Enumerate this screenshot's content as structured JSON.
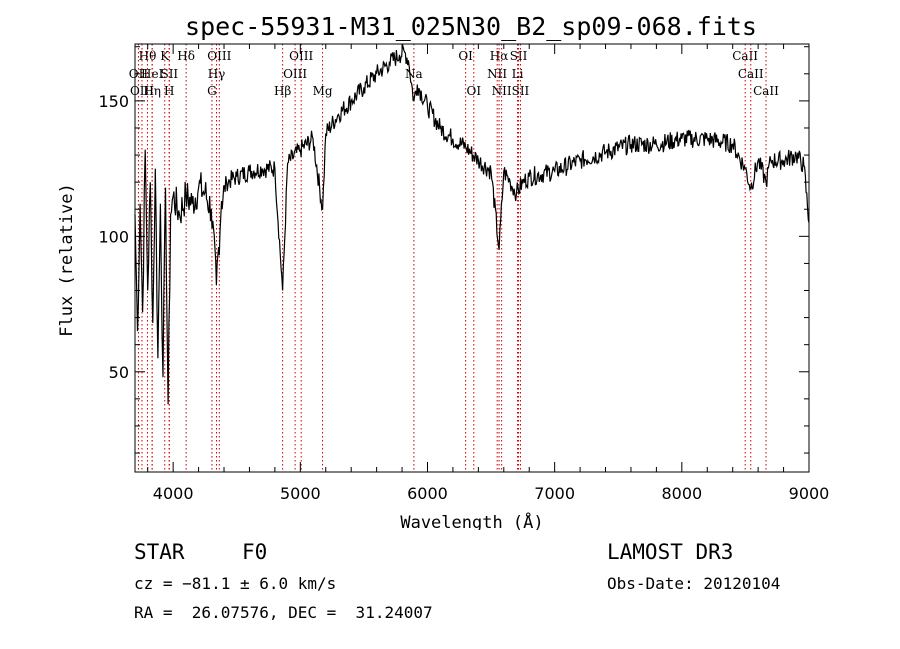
{
  "chart_data": {
    "type": "line",
    "title": "spec-55931-M31_025N30_B2_sp09-068.fits",
    "xlabel": "Wavelength (Å)",
    "ylabel": "Flux (relative)",
    "xlim": [
      3700,
      9000
    ],
    "ylim": [
      13,
      171
    ],
    "x_ticks": [
      4000,
      5000,
      6000,
      7000,
      8000,
      9000
    ],
    "y_ticks": [
      50,
      100,
      150
    ],
    "series": [
      {
        "name": "flux",
        "x": [
          3700,
          3720,
          3740,
          3760,
          3780,
          3800,
          3820,
          3840,
          3860,
          3880,
          3900,
          3920,
          3940,
          3960,
          3980,
          4000,
          4050,
          4100,
          4150,
          4200,
          4250,
          4300,
          4340,
          4380,
          4420,
          4500,
          4600,
          4700,
          4800,
          4861,
          4900,
          5000,
          5100,
          5175,
          5200,
          5300,
          5400,
          5500,
          5600,
          5700,
          5780,
          5820,
          5850,
          5893,
          5920,
          6000,
          6100,
          6200,
          6300,
          6400,
          6500,
          6563,
          6600,
          6650,
          6700,
          6750,
          6800,
          7000,
          7200,
          7400,
          7600,
          7800,
          8000,
          8200,
          8400,
          8498,
          8542,
          8600,
          8662,
          8700,
          8800,
          8900,
          8960,
          9000
        ],
        "values": [
          108,
          65,
          112,
          72,
          132,
          80,
          120,
          68,
          125,
          55,
          112,
          48,
          118,
          38,
          108,
          115,
          108,
          115,
          112,
          118,
          116,
          110,
          82,
          113,
          120,
          122,
          124,
          125,
          125,
          80,
          127,
          132,
          136,
          110,
          138,
          145,
          150,
          155,
          160,
          164,
          167,
          168,
          165,
          150,
          156,
          148,
          140,
          136,
          133,
          128,
          124,
          95,
          124,
          120,
          116,
          120,
          122,
          124,
          128,
          131,
          134,
          134,
          136,
          136,
          134,
          125,
          118,
          128,
          120,
          128,
          128,
          130,
          126,
          105
        ]
      }
    ],
    "spectral_lines": [
      {
        "label": "Hθ",
        "wavelength": 3798,
        "row": 1
      },
      {
        "label": "OII",
        "wavelength": 3727,
        "row": 2
      },
      {
        "label": "OIII",
        "wavelength": 3755,
        "row": 3
      },
      {
        "label": "HeI",
        "wavelength": 3835,
        "row": 2
      },
      {
        "label": "Hη",
        "wavelength": 3835,
        "row": 3
      },
      {
        "label": "K",
        "wavelength": 3934,
        "row": 1
      },
      {
        "label": "SII",
        "wavelength": 3970,
        "row": 2
      },
      {
        "label": "H",
        "wavelength": 3969,
        "row": 3
      },
      {
        "label": "Hδ",
        "wavelength": 4102,
        "row": 1
      },
      {
        "label": "OIII",
        "wavelength": 4363,
        "row": 1
      },
      {
        "label": "Hγ",
        "wavelength": 4341,
        "row": 2
      },
      {
        "label": "G",
        "wavelength": 4305,
        "row": 3
      },
      {
        "label": "Hβ",
        "wavelength": 4861,
        "row": 3
      },
      {
        "label": "OIII",
        "wavelength": 5007,
        "row": 1
      },
      {
        "label": "OIII",
        "wavelength": 4959,
        "row": 2
      },
      {
        "label": "Mg",
        "wavelength": 5175,
        "row": 3
      },
      {
        "label": "Na",
        "wavelength": 5893,
        "row": 2
      },
      {
        "label": "OI",
        "wavelength": 6300,
        "row": 1
      },
      {
        "label": "OI",
        "wavelength": 6364,
        "row": 3
      },
      {
        "label": "Hα",
        "wavelength": 6563,
        "row": 1
      },
      {
        "label": "NII",
        "wavelength": 6548,
        "row": 2
      },
      {
        "label": "NII",
        "wavelength": 6583,
        "row": 3
      },
      {
        "label": "SII",
        "wavelength": 6716,
        "row": 1
      },
      {
        "label": "Li",
        "wavelength": 6708,
        "row": 2
      },
      {
        "label": "SII",
        "wavelength": 6731,
        "row": 3
      },
      {
        "label": "CaII",
        "wavelength": 8498,
        "row": 1
      },
      {
        "label": "CaII",
        "wavelength": 8542,
        "row": 2
      },
      {
        "label": "CaII",
        "wavelength": 8662,
        "row": 3
      }
    ]
  },
  "info": {
    "object_class": "STAR",
    "subclass": "F0",
    "survey": "LAMOST DR3",
    "velocity": "cz = −81.1 ± 6.0 km/s",
    "obs_date": "Obs-Date: 20120104",
    "coords": "RA =  26.07576, DEC =  31.24007"
  },
  "colors": {
    "line_markers": "#cc0000",
    "spectrum": "#000000"
  }
}
